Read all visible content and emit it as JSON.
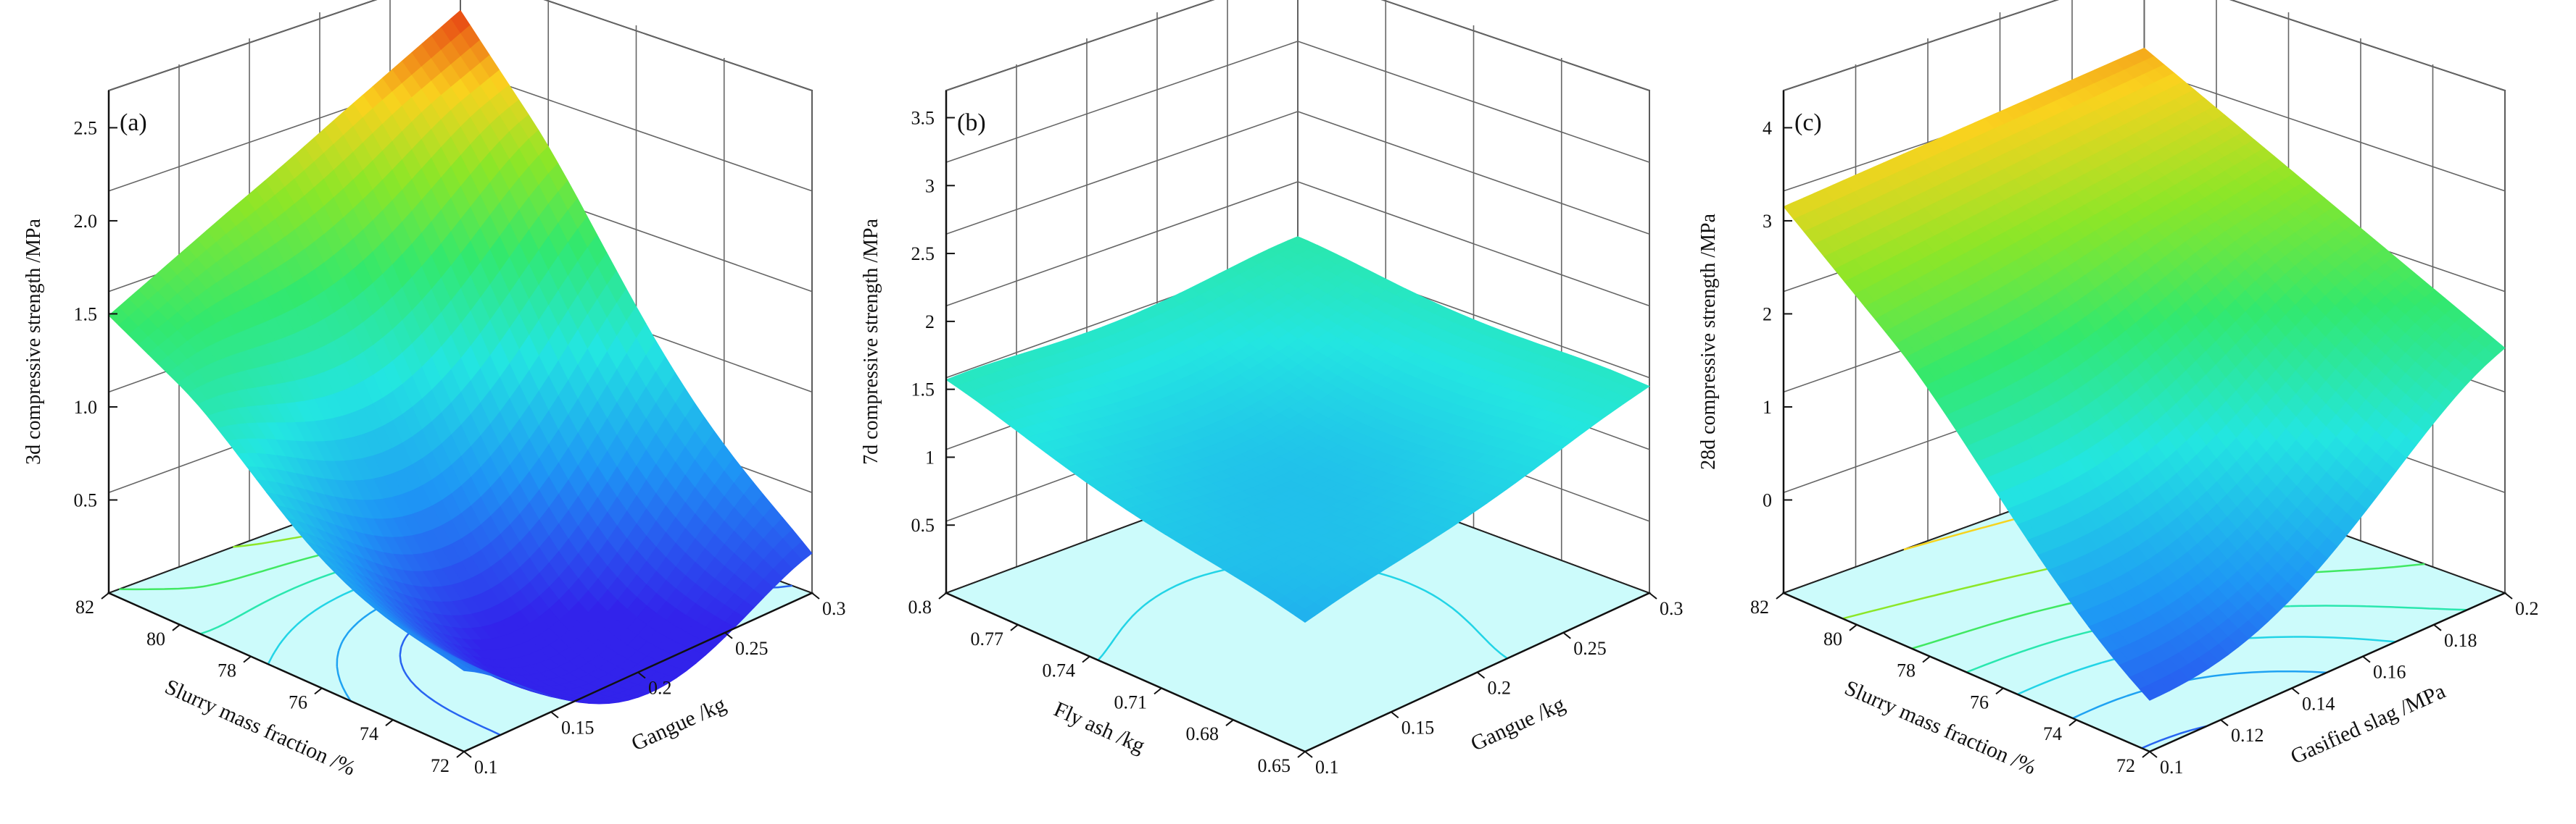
{
  "chart_data": [
    {
      "type": "surface",
      "panel_label": "(a)",
      "zlabel": "3d compressive strength /MPa",
      "xlabel": "Slurry mass fraction /%",
      "ylabel": "Gangue /kg",
      "x_ticks": [
        "82",
        "80",
        "78",
        "76",
        "74",
        "72"
      ],
      "y_ticks": [
        "0.1",
        "0.15",
        "0.2",
        "0.25",
        "0.3"
      ],
      "z_ticks": [
        "0.5",
        "1.0",
        "1.5",
        "2.0",
        "2.5"
      ],
      "xlim": [
        72,
        82
      ],
      "ylim": [
        0.1,
        0.3
      ],
      "zlim": [
        0.3,
        2.5
      ],
      "corners": [
        {
          "x": 82,
          "y": 0.1,
          "z": 1.65
        },
        {
          "x": 82,
          "y": 0.3,
          "z": 2.5
        },
        {
          "x": 72,
          "y": 0.1,
          "z": 0.72
        },
        {
          "x": 72,
          "y": 0.3,
          "z": 0.52
        }
      ],
      "minimum": {
        "x": 75.5,
        "y": 0.2,
        "z": 0.3
      }
    },
    {
      "type": "surface",
      "panel_label": "(b)",
      "zlabel": "7d compressive strength /MPa",
      "xlabel": "Fly ash /kg",
      "ylabel": "Gangue /kg",
      "x_ticks": [
        "0.8",
        "0.77",
        "0.74",
        "0.71",
        "0.68",
        "0.65"
      ],
      "y_ticks": [
        "0.1",
        "0.15",
        "0.2",
        "0.25",
        "0.3"
      ],
      "z_ticks": [
        "0.5",
        "1",
        "1.5",
        "2",
        "2.5",
        "3",
        "3.5"
      ],
      "xlim": [
        0.65,
        0.8
      ],
      "ylim": [
        0.1,
        0.3
      ],
      "zlim": [
        0,
        3.5
      ],
      "corners": [
        {
          "x": 0.8,
          "y": 0.1,
          "z": 1.65
        },
        {
          "x": 0.8,
          "y": 0.3,
          "z": 1.75
        },
        {
          "x": 0.65,
          "y": 0.1,
          "z": 1.0
        },
        {
          "x": 0.65,
          "y": 0.3,
          "z": 1.6
        }
      ],
      "minimum": {
        "x": 0.73,
        "y": 0.2,
        "z": 1.2
      }
    },
    {
      "type": "surface",
      "panel_label": "(c)",
      "zlabel": "28d compressive strength /MPa",
      "xlabel": "Slurry mass fraction /%",
      "ylabel": "Gasified slag /MPa",
      "x_ticks": [
        "82",
        "80",
        "78",
        "76",
        "74",
        "72"
      ],
      "y_ticks": [
        "0.1",
        "0.12",
        "0.14",
        "0.16",
        "0.18",
        "0.2"
      ],
      "z_ticks": [
        "0",
        "1",
        "2",
        "3",
        "4"
      ],
      "xlim": [
        72,
        82
      ],
      "ylim": [
        0.1,
        0.2
      ],
      "zlim": [
        -0.8,
        4
      ],
      "corners": [
        {
          "x": 82,
          "y": 0.1,
          "z": 3.3
        },
        {
          "x": 82,
          "y": 0.2,
          "z": 3.6
        },
        {
          "x": 72,
          "y": 0.1,
          "z": 0.2
        },
        {
          "x": 72,
          "y": 0.2,
          "z": 1.8
        }
      ],
      "minimum": {
        "x": 73,
        "y": 0.13,
        "z": 0.2
      }
    }
  ]
}
